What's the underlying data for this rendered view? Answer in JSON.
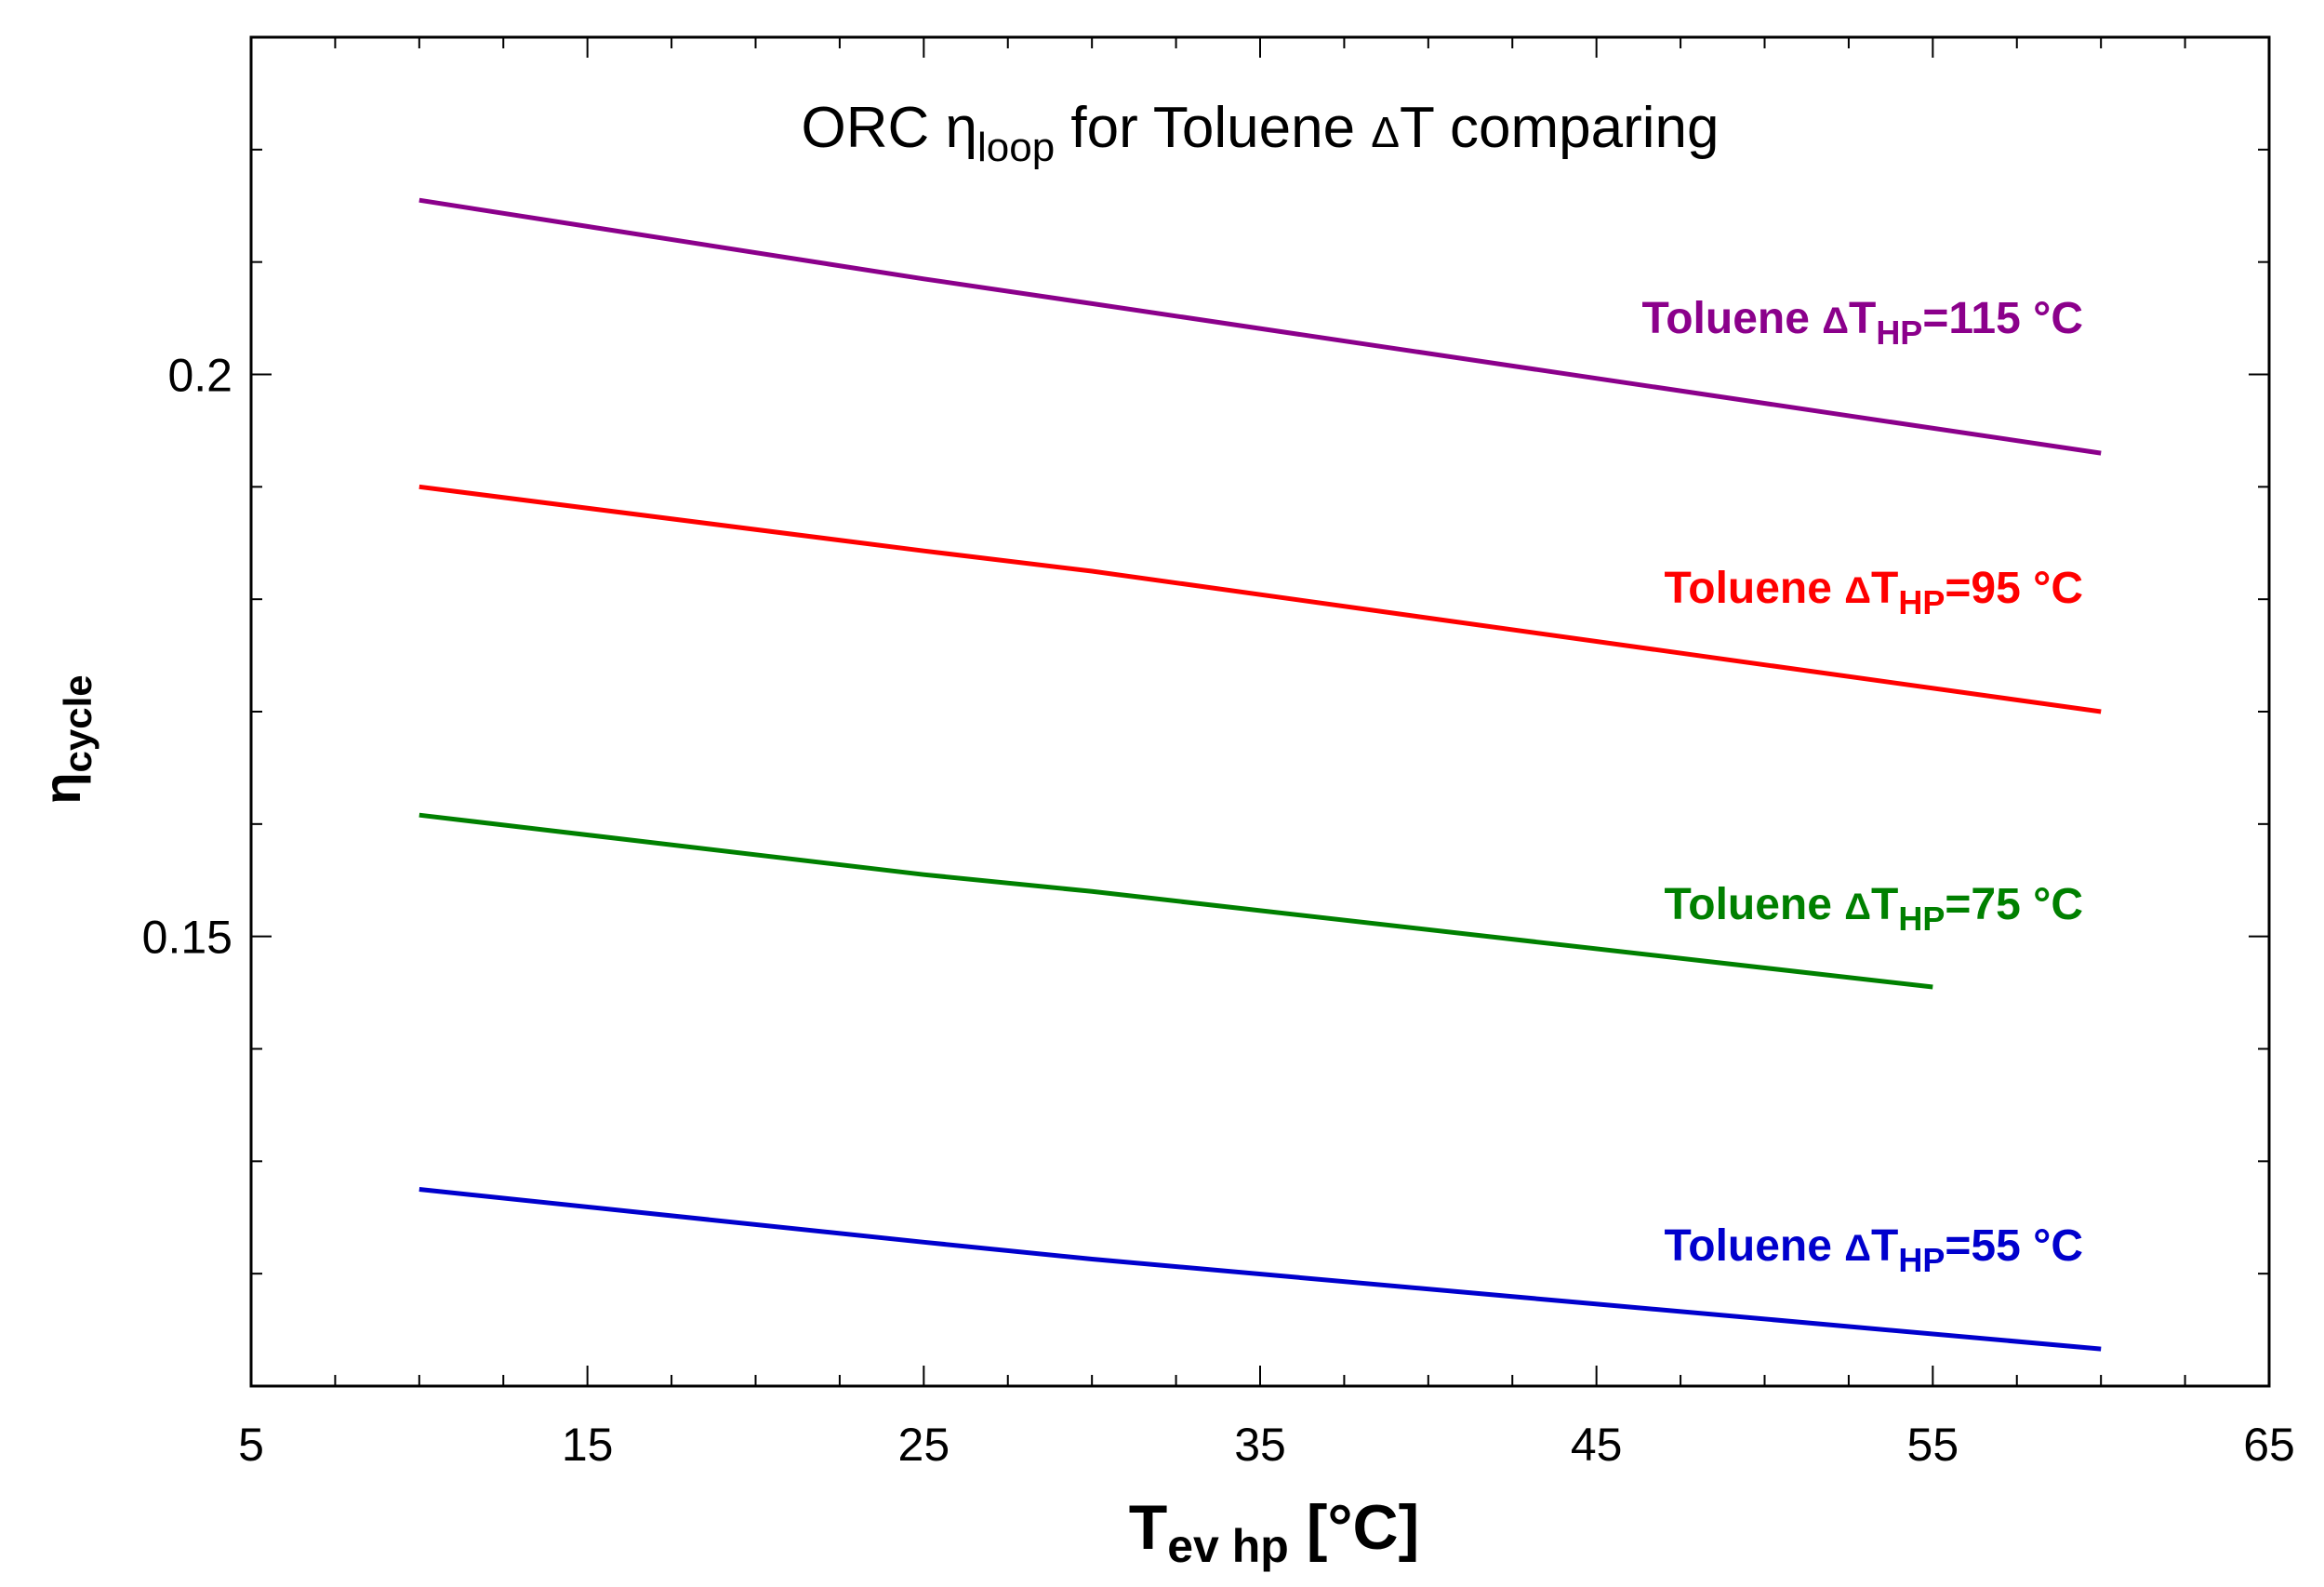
{
  "chart_data": {
    "type": "line",
    "title": {
      "prefix": "ORC ",
      "eta": "η",
      "eta_sub": "loop",
      "middle": " for Toluene ",
      "delta": "Δ",
      "suffix": "T comparing"
    },
    "xlabel": {
      "main": "T",
      "sub": "ev hp",
      "unit": " [°C]"
    },
    "ylabel": {
      "main": "η",
      "sub": "cycle"
    },
    "xlim": [
      5,
      65
    ],
    "ylim": [
      0.11,
      0.23
    ],
    "xticks": [
      5,
      15,
      25,
      35,
      45,
      55,
      65
    ],
    "xtick_labels": [
      "5",
      "15",
      "25",
      "35",
      "45",
      "55",
      "65"
    ],
    "yticks": [
      0.15,
      0.2
    ],
    "ytick_labels": [
      "0.15",
      "0.2"
    ],
    "grid": false,
    "series": [
      {
        "name": "Toluene ΔT_HP=115 °C",
        "label_prefix": "Toluene ",
        "label_delta": "Δ",
        "label_T": "T",
        "label_sub": "HP",
        "label_value": "=115 °C",
        "color": "#8B008B",
        "x": [
          10,
          25,
          30,
          60
        ],
        "y": [
          0.2155,
          0.2085,
          0.2063,
          0.193
        ]
      },
      {
        "name": "Toluene ΔT_HP=95 °C",
        "label_prefix": "Toluene ",
        "label_delta": "Δ",
        "label_T": "T",
        "label_sub": "HP",
        "label_value": "=95 °C",
        "color": "#FF0000",
        "x": [
          10,
          25,
          30,
          60
        ],
        "y": [
          0.19,
          0.1843,
          0.1825,
          0.17
        ]
      },
      {
        "name": "Toluene ΔT_HP=75 °C",
        "label_prefix": "Toluene ",
        "label_delta": "Δ",
        "label_T": "T",
        "label_sub": "HP",
        "label_value": "=75 °C",
        "color": "#008000",
        "x": [
          10,
          25,
          30,
          55
        ],
        "y": [
          0.1608,
          0.1555,
          0.154,
          0.1455
        ]
      },
      {
        "name": "Toluene ΔT_HP=55 °C",
        "label_prefix": "Toluene ",
        "label_delta": "Δ",
        "label_T": "T",
        "label_sub": "HP",
        "label_value": "=55 °C",
        "color": "#0000CD",
        "x": [
          10,
          25,
          30,
          60
        ],
        "y": [
          0.1275,
          0.1228,
          0.1213,
          0.1133
        ]
      }
    ]
  }
}
